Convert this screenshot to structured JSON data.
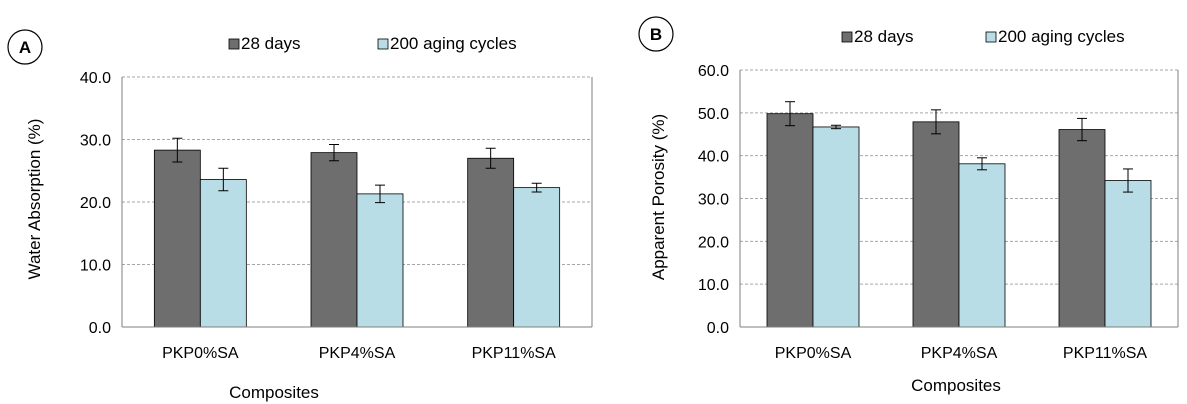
{
  "chart_data": [
    {
      "type": "bar",
      "panel_label": "A",
      "categories": [
        "PKP0%SA",
        "PKP4%SA",
        "PKP11%SA"
      ],
      "series": [
        {
          "name": "28 days",
          "values": [
            28.3,
            27.9,
            27.0
          ],
          "errors": [
            1.9,
            1.3,
            1.6
          ]
        },
        {
          "name": "200 aging cycles",
          "values": [
            23.6,
            21.3,
            22.3
          ],
          "errors": [
            1.8,
            1.4,
            0.7
          ]
        }
      ],
      "xlabel": "Composites",
      "ylabel": "Water Absorption (%)",
      "ylim": [
        0,
        40
      ],
      "yticks": [
        "0.0",
        "10.0",
        "20.0",
        "30.0",
        "40.0"
      ],
      "grid": true,
      "legend_position": "top"
    },
    {
      "type": "bar",
      "panel_label": "B",
      "categories": [
        "PKP0%SA",
        "PKP4%SA",
        "PKP11%SA"
      ],
      "series": [
        {
          "name": "28 days",
          "values": [
            49.8,
            47.9,
            46.1
          ],
          "errors": [
            2.8,
            2.8,
            2.6
          ]
        },
        {
          "name": "200 aging cycles",
          "values": [
            46.7,
            38.1,
            34.2
          ],
          "errors": [
            0.4,
            1.4,
            2.7
          ]
        }
      ],
      "xlabel": "Composites",
      "ylabel": "Apparent Porosity (%)",
      "ylim": [
        0,
        60
      ],
      "yticks": [
        "0.0",
        "10.0",
        "20.0",
        "30.0",
        "40.0",
        "50.0",
        "60.0"
      ],
      "grid": true,
      "legend_position": "top"
    }
  ],
  "colors": {
    "series_28_days": "#6e6e6e",
    "series_200_aging": "#b8dde6",
    "grid": "#a6a6a6",
    "axis": "#7f7f7f"
  }
}
